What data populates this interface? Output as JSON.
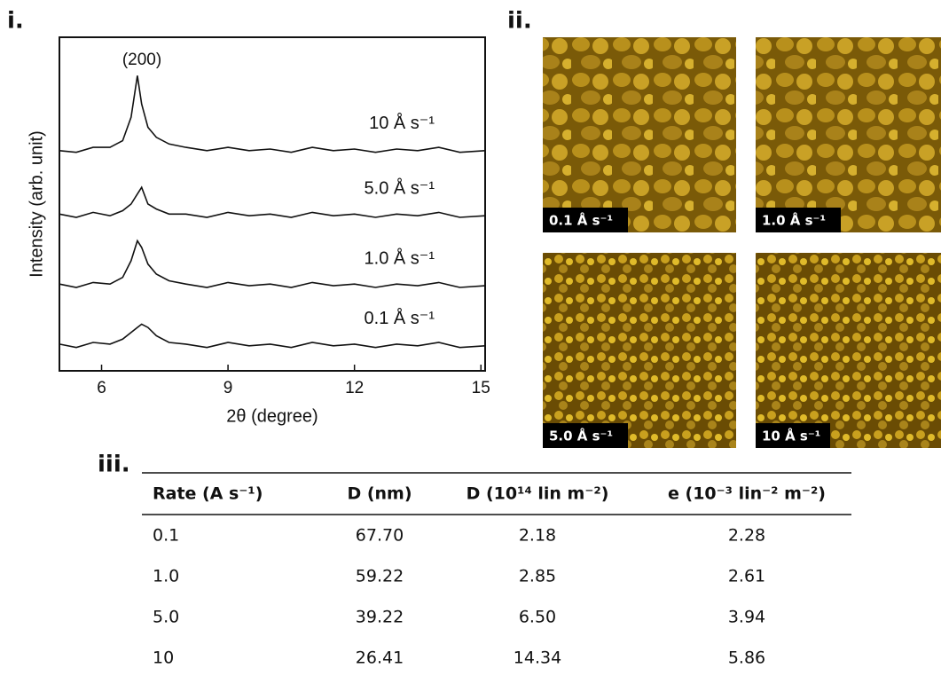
{
  "panels": {
    "i": "i.",
    "ii": "ii.",
    "iii": "iii."
  },
  "chart_data": {
    "type": "line",
    "xlabel": "2θ (degree)",
    "ylabel": "Intensity (arb. unit)",
    "annotation": "(200)",
    "x": [
      5,
      5.4,
      5.8,
      6.2,
      6.5,
      6.7,
      6.85,
      6.95,
      7.1,
      7.3,
      7.6,
      8,
      8.5,
      9,
      9.5,
      10,
      10.5,
      11,
      11.5,
      12,
      12.5,
      13,
      13.5,
      14,
      14.5,
      15.1
    ],
    "xlim": [
      5,
      15.1
    ],
    "xticks": [
      6,
      9,
      12,
      15
    ],
    "ylim": [
      0,
      10
    ],
    "color": "#111111",
    "series": [
      {
        "name": "0.1 Å s⁻¹",
        "values": [
          0.8,
          0.7,
          0.85,
          0.8,
          0.95,
          1.15,
          1.3,
          1.4,
          1.3,
          1.05,
          0.85,
          0.8,
          0.7,
          0.85,
          0.75,
          0.8,
          0.7,
          0.85,
          0.75,
          0.8,
          0.7,
          0.8,
          0.75,
          0.85,
          0.7,
          0.75
        ]
      },
      {
        "name": "1.0 Å s⁻¹",
        "values": [
          2.6,
          2.5,
          2.65,
          2.6,
          2.8,
          3.3,
          3.9,
          3.7,
          3.2,
          2.9,
          2.7,
          2.6,
          2.5,
          2.65,
          2.55,
          2.6,
          2.5,
          2.65,
          2.55,
          2.6,
          2.5,
          2.6,
          2.55,
          2.65,
          2.5,
          2.55
        ]
      },
      {
        "name": "5.0 Å s⁻¹",
        "values": [
          4.7,
          4.6,
          4.75,
          4.65,
          4.8,
          5.0,
          5.3,
          5.5,
          5.0,
          4.85,
          4.7,
          4.7,
          4.6,
          4.75,
          4.65,
          4.7,
          4.6,
          4.75,
          4.65,
          4.7,
          4.6,
          4.7,
          4.65,
          4.75,
          4.6,
          4.65
        ]
      },
      {
        "name": "10 Å s⁻¹",
        "values": [
          6.6,
          6.55,
          6.7,
          6.7,
          6.9,
          7.6,
          8.85,
          8.0,
          7.3,
          7.0,
          6.8,
          6.7,
          6.6,
          6.7,
          6.6,
          6.65,
          6.55,
          6.7,
          6.6,
          6.65,
          6.55,
          6.65,
          6.6,
          6.7,
          6.55,
          6.6
        ]
      }
    ]
  },
  "images": [
    "0.1 Å s⁻¹",
    "1.0 Å s⁻¹",
    "5.0 Å s⁻¹",
    "10 Å s⁻¹"
  ],
  "table": {
    "headers": [
      "Rate (A s⁻¹)",
      "D (nm)",
      "D (10¹⁴ lin m⁻²)",
      "e (10⁻³ lin⁻² m⁻²)"
    ],
    "rows": [
      [
        "0.1",
        "67.70",
        "2.18",
        "2.28"
      ],
      [
        "1.0",
        "59.22",
        "2.85",
        "2.61"
      ],
      [
        "5.0",
        "39.22",
        "6.50",
        "3.94"
      ],
      [
        "10",
        "26.41",
        "14.34",
        "5.86"
      ]
    ]
  }
}
